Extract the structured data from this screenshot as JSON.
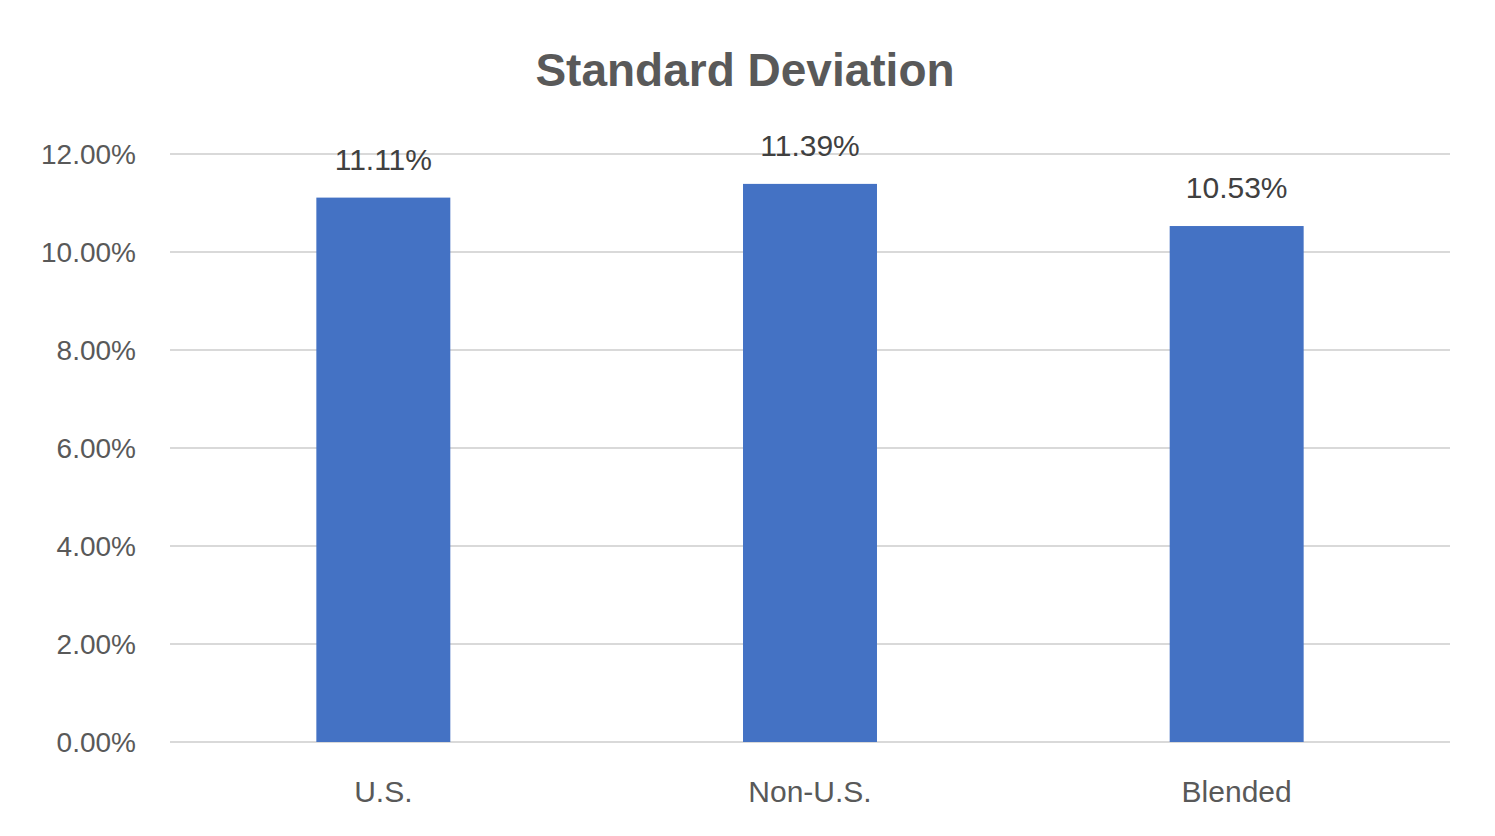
{
  "chart_data": {
    "type": "bar",
    "title": "Standard Deviation",
    "categories": [
      "U.S.",
      "Non-U.S.",
      "Blended"
    ],
    "values": [
      11.11,
      11.39,
      10.53
    ],
    "value_labels": [
      "11.11%",
      "11.39%",
      "10.53%"
    ],
    "data_labels": true,
    "color": "#4472c4",
    "ylim": [
      0,
      12
    ],
    "yticks": [
      {
        "value": 0,
        "label": "0.00%"
      },
      {
        "value": 2,
        "label": "2.00%"
      },
      {
        "value": 4,
        "label": "4.00%"
      },
      {
        "value": 6,
        "label": "6.00%"
      },
      {
        "value": 8,
        "label": "8.00%"
      },
      {
        "value": 10,
        "label": "10.00%"
      },
      {
        "value": 12,
        "label": "12.00%"
      }
    ],
    "grid": true
  }
}
